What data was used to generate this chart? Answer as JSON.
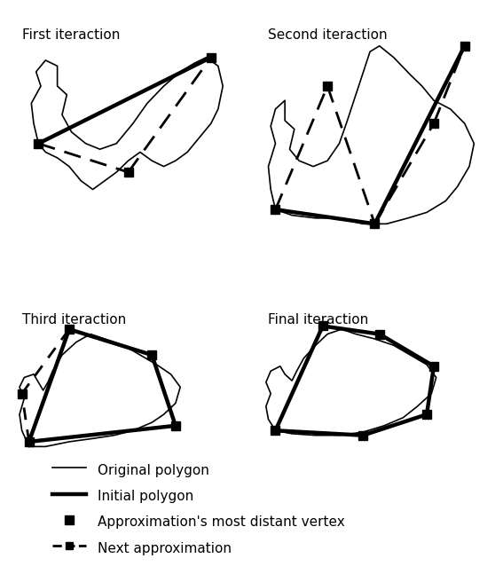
{
  "panel_titles": [
    "First iteraction",
    "Second iteraction",
    "Third iteraction",
    "Final iteraction"
  ],
  "legend": {
    "original_polygon": "Original polygon",
    "initial_polygon": "Initial polygon",
    "distant_vertex": "Approximation's most distant vertex",
    "next_approx": "Next approximation"
  },
  "background_color": "#ffffff",
  "thin_lw": 1.2,
  "thick_lw": 3.2,
  "dash_lw": 2.0,
  "marker_size": 7,
  "label_fontsize": 11
}
